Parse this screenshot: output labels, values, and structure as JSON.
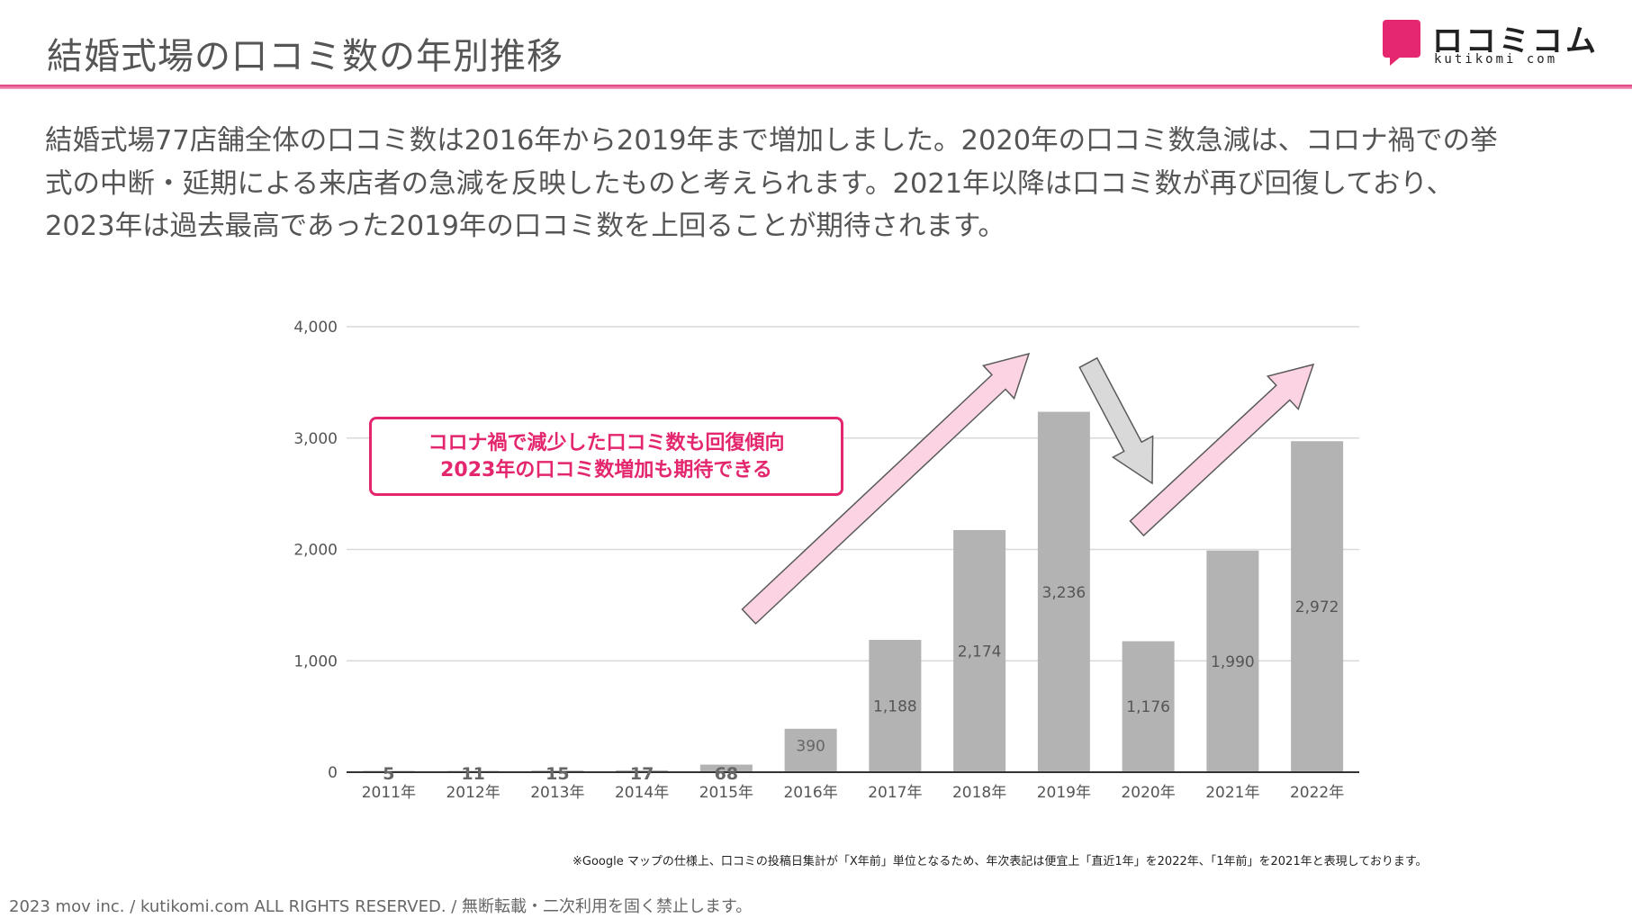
{
  "header": {
    "title": "結婚式場の口コミ数の年別推移"
  },
  "logo": {
    "jp": "ロコミコム",
    "en": "kutikomi com"
  },
  "description": {
    "lines": [
      "結婚式場77店舗全体の口コミ数は2016年から2019年まで増加しました。2020年の口コミ数急減は、コロナ禍での挙",
      "式の中断・延期による来店者の急減を反映したものと考えられます。2021年以降は口コミ数が再び回復しており、",
      "2023年は過去最高であった2019年の口コミ数を上回ることが期待されます。"
    ]
  },
  "callout": {
    "line1": "コロナ禍で減少した口コミ数も回復傾向",
    "line2": "2023年の口コミ数増加も期待できる"
  },
  "note": "※Google マップの仕様上、口コミの投稿日集計が「X年前」単位となるため、年次表記は便宜上「直近1年」を2022年、「1年前」を2021年と表現しております。",
  "footer": "2023 mov inc. / kutikomi.com ALL RIGHTS RESERVED. / 無断転載・二次利用を固く禁止します。",
  "colors": {
    "accent": "#e3266e",
    "bar": "#b3b3b3",
    "arrow_fill": "#fbd3e3",
    "arrow_stroke": "#5a5a5a",
    "gray_arrow_fill": "#d9d9d9",
    "grid": "#d9d9d9"
  },
  "chart_data": {
    "type": "bar",
    "categories": [
      "2011年",
      "2012年",
      "2013年",
      "2014年",
      "2015年",
      "2016年",
      "2017年",
      "2018年",
      "2019年",
      "2020年",
      "2021年",
      "2022年"
    ],
    "values": [
      5,
      11,
      15,
      17,
      68,
      390,
      1188,
      2174,
      3236,
      1176,
      1990,
      2972
    ],
    "value_labels": [
      "5",
      "11",
      "15",
      "17",
      "68",
      "390",
      "1,188",
      "2,174",
      "3,236",
      "1,176",
      "1,990",
      "2,972"
    ],
    "yticks": [
      0,
      1000,
      2000,
      3000,
      4000
    ],
    "ytick_labels": [
      "0",
      "1,000",
      "2,000",
      "3,000",
      "4,000"
    ],
    "ylim": [
      0,
      4000
    ],
    "grid": true,
    "title": "",
    "xlabel": "",
    "ylabel": "",
    "annotations": [
      {
        "type": "up-arrow",
        "from_year": "2015年",
        "to_year": "2019年",
        "color": "pink"
      },
      {
        "type": "down-arrow",
        "from_year": "2019年",
        "to_year": "2020年",
        "color": "gray"
      },
      {
        "type": "up-arrow",
        "from_year": "2020年",
        "to_year": "2022年",
        "color": "pink"
      }
    ]
  }
}
